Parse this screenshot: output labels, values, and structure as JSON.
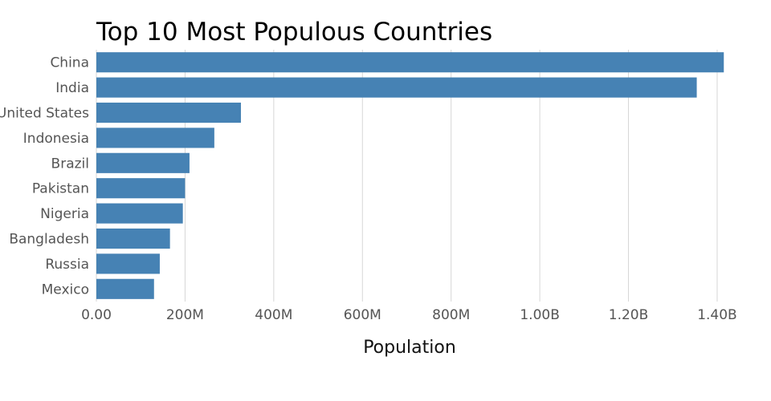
{
  "chart_data": {
    "type": "bar",
    "orientation": "horizontal",
    "title": "Top 10 Most Populous Countries",
    "xlabel": "Population",
    "ylabel": "",
    "categories": [
      "China",
      "India",
      "United States",
      "Indonesia",
      "Brazil",
      "Pakistan",
      "Nigeria",
      "Bangladesh",
      "Russia",
      "Mexico"
    ],
    "values": [
      1415000000,
      1354000000,
      326000000,
      266000000,
      210000000,
      200000000,
      195000000,
      166000000,
      143000000,
      130000000
    ],
    "xlim": [
      0,
      1420000000
    ],
    "xticks": [
      0,
      200000000,
      400000000,
      600000000,
      800000000,
      1000000000,
      1200000000,
      1400000000
    ],
    "xtick_labels": [
      "0.00",
      "200M",
      "400M",
      "600M",
      "800M",
      "1.00B",
      "1.20B",
      "1.40B"
    ],
    "grid": true,
    "legend": "none",
    "bar_color": "#4682b4"
  }
}
